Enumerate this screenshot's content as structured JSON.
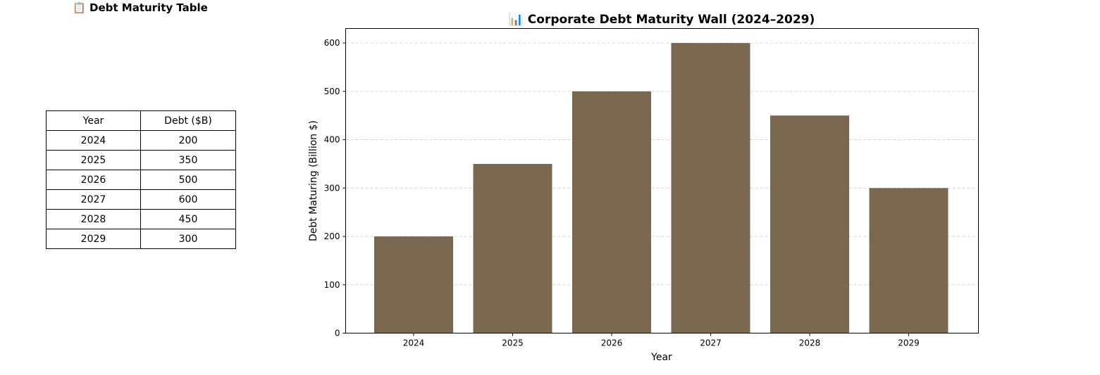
{
  "table": {
    "title": "📋 Debt Maturity Table",
    "headers": [
      "Year",
      "Debt ($B)"
    ],
    "rows": [
      [
        "2024",
        "200"
      ],
      [
        "2025",
        "350"
      ],
      [
        "2026",
        "500"
      ],
      [
        "2027",
        "600"
      ],
      [
        "2028",
        "450"
      ],
      [
        "2029",
        "300"
      ]
    ]
  },
  "chart_data": {
    "type": "bar",
    "title": "📊 Corporate Debt Maturity Wall (2024–2029)",
    "xlabel": "Year",
    "ylabel": "Debt Maturing (Billion $)",
    "categories": [
      "2024",
      "2025",
      "2026",
      "2027",
      "2028",
      "2029"
    ],
    "values": [
      200,
      350,
      500,
      600,
      450,
      300
    ],
    "ylim": [
      0,
      630
    ],
    "yticks": [
      0,
      100,
      200,
      300,
      400,
      500,
      600
    ],
    "grid": "y dashed",
    "bar_color": "#7a6850"
  }
}
